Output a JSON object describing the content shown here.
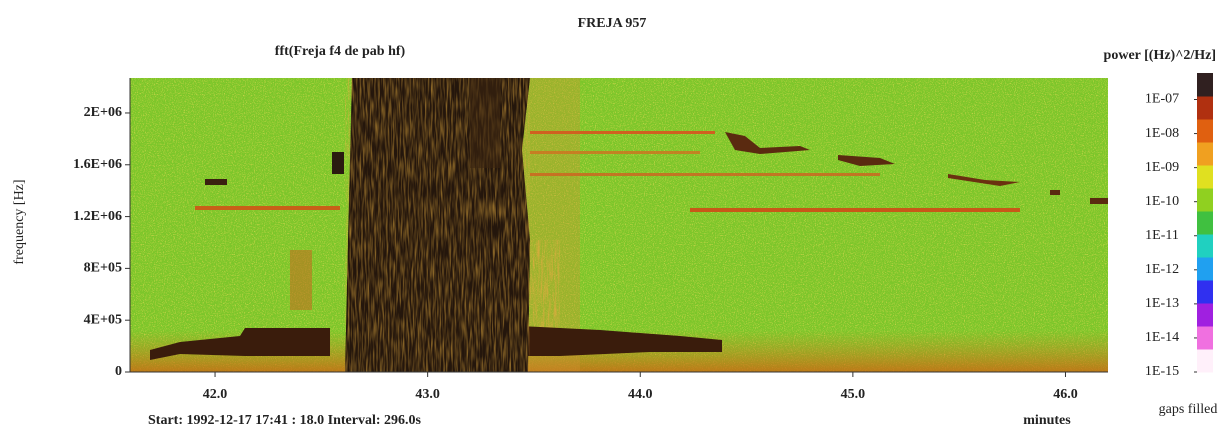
{
  "chart_data": {
    "type": "spectrogram",
    "title": "FREJA 957",
    "subtitle": "fft(Freja f4 de pab hf)",
    "ylabel": "frequency [Hz]",
    "xlabel": "minutes",
    "footer": "Start:  1992-12-17  17:41 : 18.0  Interval: 296.0s",
    "colorbar_label": "power [(Hz)^2/Hz]",
    "colorbar_note": "gaps filled",
    "xlim": [
      41.6,
      46.2
    ],
    "xticks": [
      {
        "value": 42,
        "label": "42.0"
      },
      {
        "value": 43,
        "label": "43.0"
      },
      {
        "value": 44,
        "label": "44.0"
      },
      {
        "value": 45,
        "label": "45.0"
      },
      {
        "value": 46,
        "label": "46.0"
      }
    ],
    "ylim": [
      0,
      2270000
    ],
    "yticks": [
      0,
      {
        "value": 400000,
        "label": "4E+05"
      },
      {
        "value": 800000,
        "label": "8E+05"
      },
      {
        "value": 1200000,
        "label": "1.2E+06"
      },
      {
        "value": 1600000,
        "label": "1.6E+06"
      },
      {
        "value": 2000000,
        "label": "2E+06"
      }
    ],
    "clim": [
      1e-15,
      6e-07
    ],
    "color_scale": "log",
    "cticks": [
      {
        "value": 1e-07,
        "label": "1E-07"
      },
      {
        "value": 1e-08,
        "label": "1E-08"
      },
      {
        "value": 1e-09,
        "label": "1E-09"
      },
      {
        "value": 1e-10,
        "label": "1E-10"
      },
      {
        "value": 1e-11,
        "label": "1E-11"
      },
      {
        "value": 1e-12,
        "label": "1E-12"
      },
      {
        "value": 1e-13,
        "label": "1E-13"
      },
      {
        "value": 1e-14,
        "label": "1E-14"
      },
      {
        "value": 1e-15,
        "label": "1E-15"
      }
    ],
    "colormap": [
      "#fff0fa",
      "#f070e0",
      "#a020e0",
      "#3030f0",
      "#20a0f0",
      "#20d0c0",
      "#40c040",
      "#90d020",
      "#e0e020",
      "#f0a020",
      "#e06010",
      "#b03010",
      "#302020"
    ]
  }
}
